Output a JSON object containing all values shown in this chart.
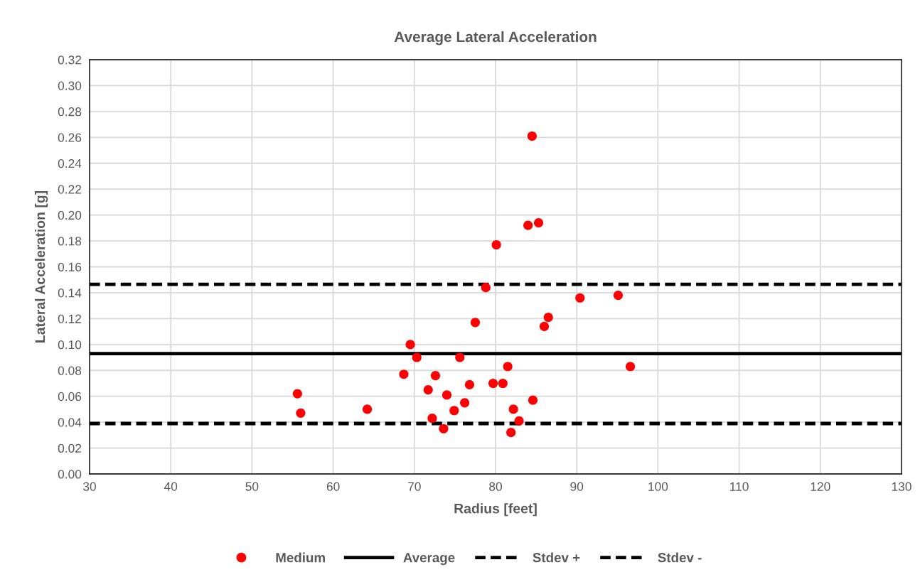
{
  "chart_data": {
    "type": "scatter",
    "title": "Average Lateral Acceleration",
    "xlabel": "Radius [feet]",
    "ylabel": "Lateral Acceleration [g]",
    "xlim": [
      30,
      130
    ],
    "xticks": [
      30,
      40,
      50,
      60,
      70,
      80,
      90,
      100,
      110,
      120,
      130
    ],
    "ylim": [
      0,
      0.32
    ],
    "yticks": [
      {
        "value": 0,
        "label": "0.00"
      },
      {
        "value": 0.02,
        "label": "0.02"
      },
      {
        "value": 0.04,
        "label": "0.04"
      },
      {
        "value": 0.06,
        "label": "0.06"
      },
      {
        "value": 0.08,
        "label": "0.08"
      },
      {
        "value": 0.1,
        "label": "0.10"
      },
      {
        "value": 0.12,
        "label": "0.12"
      },
      {
        "value": 0.14,
        "label": "0.14"
      },
      {
        "value": 0.16,
        "label": "0.16"
      },
      {
        "value": 0.18,
        "label": "0.18"
      },
      {
        "value": 0.2,
        "label": "0.20"
      },
      {
        "value": 0.22,
        "label": "0.22"
      },
      {
        "value": 0.24,
        "label": "0.24"
      },
      {
        "value": 0.26,
        "label": "0.26"
      },
      {
        "value": 0.28,
        "label": "0.28"
      },
      {
        "value": 0.3,
        "label": "0.30"
      },
      {
        "value": 0.32,
        "label": "0.32"
      }
    ],
    "grid": true,
    "legend": "bottom",
    "series": [
      {
        "name": "Medium",
        "color": "#ff0000",
        "marker": "circle",
        "x": [
          55.6,
          56.0,
          64.2,
          68.7,
          69.5,
          70.3,
          71.7,
          72.2,
          72.6,
          73.6,
          74.0,
          74.9,
          75.6,
          76.2,
          76.8,
          77.5,
          78.8,
          79.7,
          80.1,
          80.9,
          81.5,
          81.9,
          82.2,
          82.9,
          84.0,
          84.5,
          84.6,
          85.3,
          86.0,
          86.5,
          90.4,
          95.1,
          96.6
        ],
        "values": [
          0.062,
          0.047,
          0.05,
          0.077,
          0.1,
          0.09,
          0.065,
          0.043,
          0.076,
          0.035,
          0.061,
          0.049,
          0.09,
          0.055,
          0.069,
          0.117,
          0.144,
          0.07,
          0.177,
          0.07,
          0.083,
          0.032,
          0.05,
          0.041,
          0.192,
          0.261,
          0.057,
          0.194,
          0.114,
          0.121,
          0.136,
          0.138,
          0.083
        ]
      },
      {
        "name": "Average",
        "type": "line",
        "color": "#000000",
        "line_style": "solid",
        "marker": "none",
        "x": [
          30,
          130
        ],
        "values": [
          0.093,
          0.093
        ]
      },
      {
        "name": "Stdev +",
        "type": "line",
        "color": "#000000",
        "line_style": "dashed",
        "marker": "none",
        "x": [
          30,
          130
        ],
        "values": [
          0.1465,
          0.1465
        ]
      },
      {
        "name": "Stdev -",
        "type": "line",
        "color": "#000000",
        "line_style": "dashed",
        "marker": "none",
        "x": [
          30,
          130
        ],
        "values": [
          0.039,
          0.039
        ]
      }
    ]
  }
}
